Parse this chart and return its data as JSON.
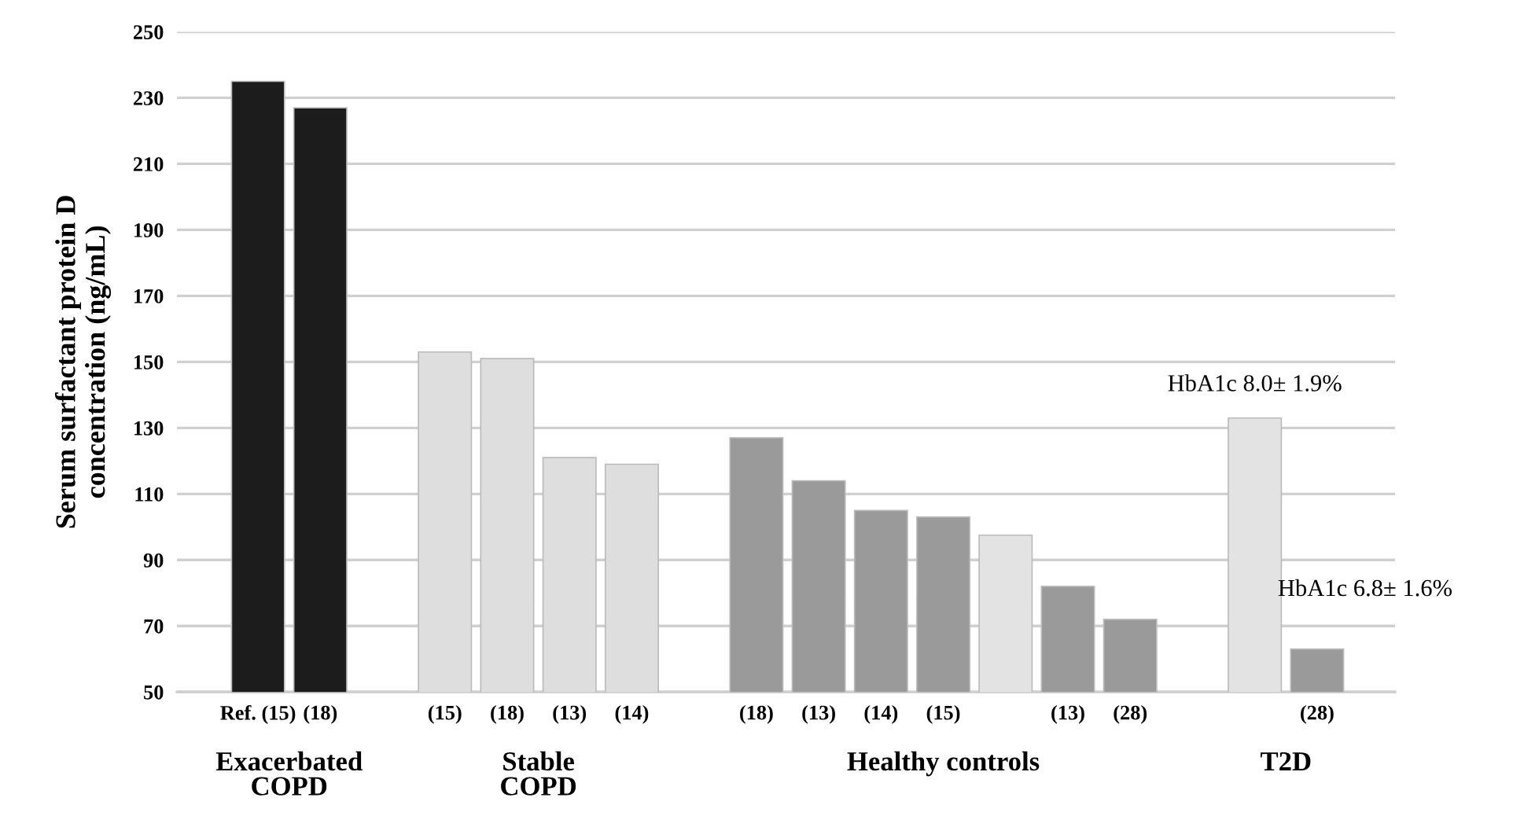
{
  "chart_data": {
    "type": "bar",
    "ylabel": "Serum surfactant protein D\nconcentration (ng/mL)",
    "categories": [
      "Ref. (15)",
      "(18)",
      null,
      "(15)",
      "(18)",
      "(13)",
      "(14)",
      null,
      "(18)",
      "(13)",
      "(14)",
      "(15)",
      null,
      "(13)",
      "(28)",
      null,
      null,
      "(28)"
    ],
    "values": [
      235,
      227,
      null,
      153,
      151,
      121,
      119,
      null,
      127,
      114,
      105,
      103,
      97.5,
      82,
      72,
      null,
      133,
      63
    ],
    "colors": [
      "#1c1c1c",
      "#1c1c1c",
      null,
      "#dedede",
      "#dedede",
      "#dedede",
      "#dedede",
      null,
      "#9a9a9a",
      "#9a9a9a",
      "#9a9a9a",
      "#9a9a9a",
      "#e3e3e3",
      "#9a9a9a",
      "#9a9a9a",
      null,
      "#e3e3e3",
      "#9a9a9a"
    ],
    "ylim": [
      50,
      250
    ],
    "yticks": [
      50,
      70,
      90,
      110,
      130,
      150,
      170,
      190,
      210,
      230,
      250
    ],
    "grid": "y",
    "annotations": [
      "Exacerbated\nCOPD",
      "Stable\nCOPD",
      "Healthy controls",
      "T2D",
      {
        "text": "HbA1c 8.0± 1.9%",
        "y": 133
      },
      "HbA1c 6.8± 1.6%"
    ]
  }
}
